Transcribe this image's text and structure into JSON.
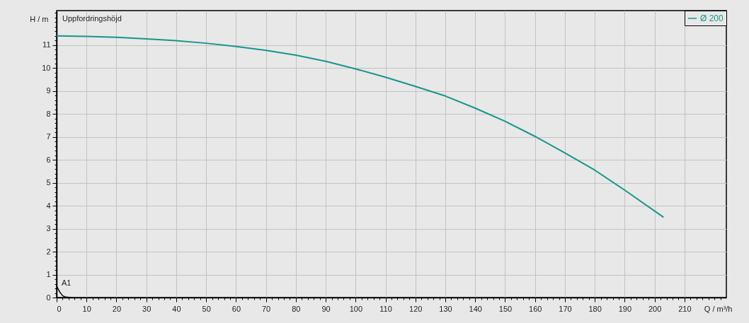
{
  "chart_data": {
    "type": "line",
    "xlabel": "Q / m³/h",
    "ylabel": "H / m",
    "annotations": [
      "Uppfordringshöjd",
      "A1"
    ],
    "xlim": [
      0,
      224
    ],
    "ylim": [
      0,
      12.5
    ],
    "xticks": [
      0,
      {
        "value": 2,
        "label": null
      },
      {
        "value": 4,
        "label": null
      },
      {
        "value": 6,
        "label": null
      },
      {
        "value": 8,
        "label": null
      },
      10,
      {
        "value": 12,
        "label": null
      },
      {
        "value": 14,
        "label": null
      },
      {
        "value": 16,
        "label": null
      },
      {
        "value": 18,
        "label": null
      },
      20,
      {
        "value": 22,
        "label": null
      },
      {
        "value": 24,
        "label": null
      },
      {
        "value": 26,
        "label": null
      },
      {
        "value": 28,
        "label": null
      },
      30,
      {
        "value": 32,
        "label": null
      },
      {
        "value": 34,
        "label": null
      },
      {
        "value": 36,
        "label": null
      },
      {
        "value": 38,
        "label": null
      },
      40,
      {
        "value": 42,
        "label": null
      },
      {
        "value": 44,
        "label": null
      },
      {
        "value": 46,
        "label": null
      },
      {
        "value": 48,
        "label": null
      },
      50,
      {
        "value": 52,
        "label": null
      },
      {
        "value": 54,
        "label": null
      },
      {
        "value": 56,
        "label": null
      },
      {
        "value": 58,
        "label": null
      },
      60,
      {
        "value": 62,
        "label": null
      },
      {
        "value": 64,
        "label": null
      },
      {
        "value": 66,
        "label": null
      },
      {
        "value": 68,
        "label": null
      },
      70,
      {
        "value": 72,
        "label": null
      },
      {
        "value": 74,
        "label": null
      },
      {
        "value": 76,
        "label": null
      },
      {
        "value": 78,
        "label": null
      },
      80,
      {
        "value": 82,
        "label": null
      },
      {
        "value": 84,
        "label": null
      },
      {
        "value": 86,
        "label": null
      },
      {
        "value": 88,
        "label": null
      },
      90,
      {
        "value": 92,
        "label": null
      },
      {
        "value": 94,
        "label": null
      },
      {
        "value": 96,
        "label": null
      },
      {
        "value": 98,
        "label": null
      },
      100,
      {
        "value": 102,
        "label": null
      },
      {
        "value": 104,
        "label": null
      },
      {
        "value": 106,
        "label": null
      },
      {
        "value": 108,
        "label": null
      },
      110,
      {
        "value": 112,
        "label": null
      },
      {
        "value": 114,
        "label": null
      },
      {
        "value": 116,
        "label": null
      },
      {
        "value": 118,
        "label": null
      },
      120,
      {
        "value": 122,
        "label": null
      },
      {
        "value": 124,
        "label": null
      },
      {
        "value": 126,
        "label": null
      },
      {
        "value": 128,
        "label": null
      },
      130,
      {
        "value": 132,
        "label": null
      },
      {
        "value": 134,
        "label": null
      },
      {
        "value": 136,
        "label": null
      },
      {
        "value": 138,
        "label": null
      },
      140,
      {
        "value": 142,
        "label": null
      },
      {
        "value": 144,
        "label": null
      },
      {
        "value": 146,
        "label": null
      },
      {
        "value": 148,
        "label": null
      },
      150,
      {
        "value": 152,
        "label": null
      },
      {
        "value": 154,
        "label": null
      },
      {
        "value": 156,
        "label": null
      },
      {
        "value": 158,
        "label": null
      },
      160,
      {
        "value": 162,
        "label": null
      },
      {
        "value": 164,
        "label": null
      },
      {
        "value": 166,
        "label": null
      },
      {
        "value": 168,
        "label": null
      },
      170,
      {
        "value": 172,
        "label": null
      },
      {
        "value": 174,
        "label": null
      },
      {
        "value": 176,
        "label": null
      },
      {
        "value": 178,
        "label": null
      },
      180,
      {
        "value": 182,
        "label": null
      },
      {
        "value": 184,
        "label": null
      },
      {
        "value": 186,
        "label": null
      },
      {
        "value": 188,
        "label": null
      },
      190,
      {
        "value": 192,
        "label": null
      },
      {
        "value": 194,
        "label": null
      },
      {
        "value": 196,
        "label": null
      },
      {
        "value": 198,
        "label": null
      },
      200,
      {
        "value": 202,
        "label": null
      },
      {
        "value": 204,
        "label": null
      },
      {
        "value": 206,
        "label": null
      },
      {
        "value": 208,
        "label": null
      },
      210,
      {
        "value": 212,
        "label": null
      },
      {
        "value": 214,
        "label": null
      },
      {
        "value": 216,
        "label": null
      },
      {
        "value": 218,
        "label": null
      },
      {
        "value": 220,
        "label": null
      },
      {
        "value": 222,
        "label": null
      }
    ],
    "yticks": [
      0,
      {
        "value": 0.2,
        "label": null
      },
      {
        "value": 0.4,
        "label": null
      },
      {
        "value": 0.6,
        "label": null
      },
      {
        "value": 0.8,
        "label": null
      },
      1,
      {
        "value": 1.2,
        "label": null
      },
      {
        "value": 1.4,
        "label": null
      },
      {
        "value": 1.6,
        "label": null
      },
      {
        "value": 1.8,
        "label": null
      },
      2,
      {
        "value": 2.2,
        "label": null
      },
      {
        "value": 2.4,
        "label": null
      },
      {
        "value": 2.6,
        "label": null
      },
      {
        "value": 2.8,
        "label": null
      },
      3,
      {
        "value": 3.2,
        "label": null
      },
      {
        "value": 3.4,
        "label": null
      },
      {
        "value": 3.6,
        "label": null
      },
      {
        "value": 3.8,
        "label": null
      },
      4,
      {
        "value": 4.2,
        "label": null
      },
      {
        "value": 4.4,
        "label": null
      },
      {
        "value": 4.6,
        "label": null
      },
      {
        "value": 4.8,
        "label": null
      },
      5,
      {
        "value": 5.2,
        "label": null
      },
      {
        "value": 5.4,
        "label": null
      },
      {
        "value": 5.6,
        "label": null
      },
      {
        "value": 5.8,
        "label": null
      },
      6,
      {
        "value": 6.2,
        "label": null
      },
      {
        "value": 6.4,
        "label": null
      },
      {
        "value": 6.6,
        "label": null
      },
      {
        "value": 6.8,
        "label": null
      },
      7,
      {
        "value": 7.2,
        "label": null
      },
      {
        "value": 7.4,
        "label": null
      },
      {
        "value": 7.6,
        "label": null
      },
      {
        "value": 7.8,
        "label": null
      },
      8,
      {
        "value": 8.2,
        "label": null
      },
      {
        "value": 8.4,
        "label": null
      },
      {
        "value": 8.6,
        "label": null
      },
      {
        "value": 8.8,
        "label": null
      },
      9,
      {
        "value": 9.2,
        "label": null
      },
      {
        "value": 9.4,
        "label": null
      },
      {
        "value": 9.6,
        "label": null
      },
      {
        "value": 9.8,
        "label": null
      },
      10,
      {
        "value": 10.2,
        "label": null
      },
      {
        "value": 10.4,
        "label": null
      },
      {
        "value": 10.6,
        "label": null
      },
      {
        "value": 10.8,
        "label": null
      },
      11,
      {
        "value": 11.2,
        "label": null
      },
      {
        "value": 11.4,
        "label": null
      },
      {
        "value": 11.6,
        "label": null
      },
      {
        "value": 11.8,
        "label": null
      },
      {
        "value": 12,
        "label": null
      },
      {
        "value": 12.2,
        "label": null
      },
      {
        "value": 12.4,
        "label": null
      }
    ],
    "grid": true,
    "legend": "top right",
    "marker": "none",
    "line_style": "solid",
    "series": [
      {
        "name": "Ø 200",
        "color": "#16968a",
        "x": [
          0,
          10,
          20,
          30,
          40,
          50,
          60,
          70,
          80,
          90,
          100,
          110,
          120,
          130,
          140,
          150,
          160,
          170,
          180,
          190,
          203
        ],
        "values": [
          11.4,
          11.38,
          11.34,
          11.27,
          11.19,
          11.08,
          10.94,
          10.77,
          10.56,
          10.29,
          9.96,
          9.6,
          9.2,
          8.78,
          8.25,
          7.68,
          7.02,
          6.3,
          5.55,
          4.68,
          3.5
        ]
      },
      {
        "color": "#000000",
        "x": [
          0,
          1,
          2,
          3,
          5
        ],
        "values": [
          0.5,
          0.25,
          0.08,
          0.02,
          0
        ]
      }
    ]
  }
}
